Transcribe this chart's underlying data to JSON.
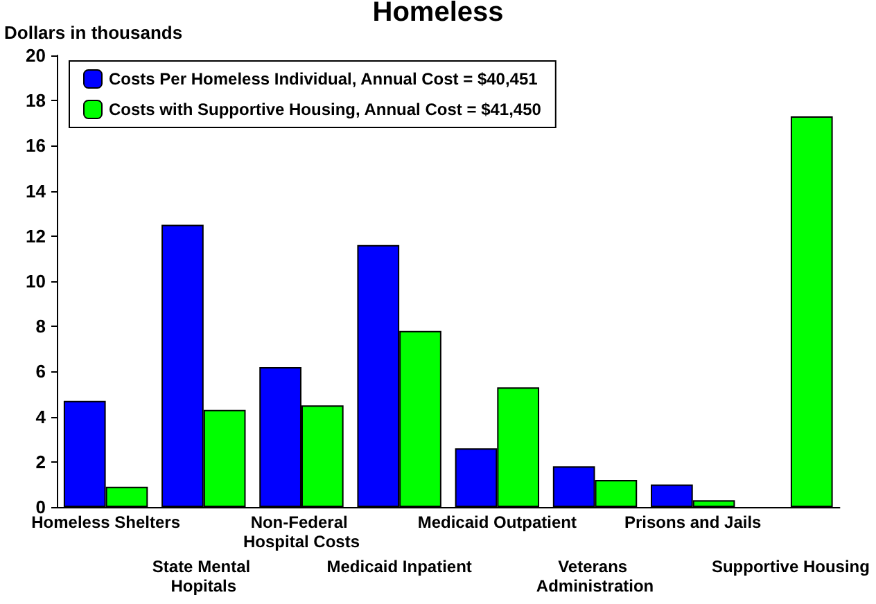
{
  "chart_data": {
    "type": "bar",
    "title": "Homeless",
    "ylabel": "Dollars in thousands",
    "categories": [
      "Homeless Shelters",
      "State Mental Hopitals",
      "Non-Federal Hospital Costs",
      "Medicaid Inpatient",
      "Medicaid Outpatient",
      "Veterans Administration",
      "Prisons and Jails",
      "Supportive Housing"
    ],
    "series": [
      {
        "name": "Costs Per Homeless Individual, Annual Cost = $40,451",
        "color": "#0000ff",
        "values": [
          4.7,
          12.5,
          6.2,
          11.6,
          2.6,
          1.8,
          1.0,
          null
        ]
      },
      {
        "name": "Costs with Supportive Housing, Annual Cost = $41,450",
        "color": "#00ff00",
        "values": [
          0.9,
          4.3,
          4.5,
          7.8,
          5.3,
          1.2,
          0.3,
          17.3
        ]
      }
    ],
    "ylim": [
      0,
      20
    ],
    "yticks": [
      0,
      2,
      4,
      6,
      8,
      10,
      12,
      14,
      16,
      18,
      20
    ],
    "grid": false,
    "legend": "top left"
  }
}
